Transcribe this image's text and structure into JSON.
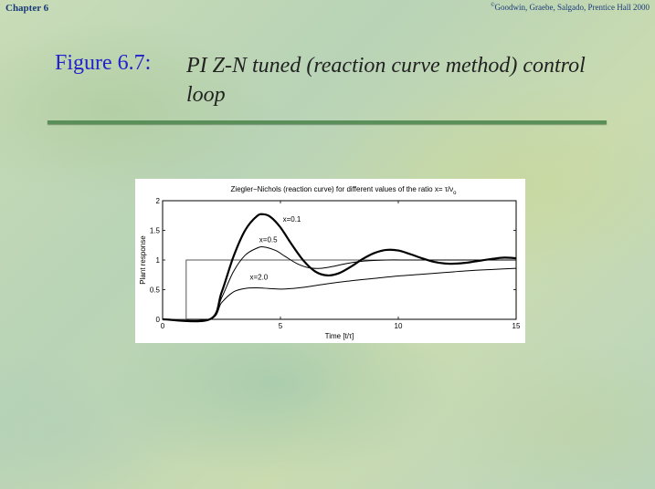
{
  "header": {
    "chapter": "Chapter 6",
    "copyright_symbol": "©",
    "copyright": "Goodwin, Graebe, Salgado, Prentice Hall 2000"
  },
  "slide": {
    "figure_label": "Figure 6.7:",
    "title": "PI Z-N tuned (reaction curve method) control loop"
  },
  "colors": {
    "figure_label": "#2222cc",
    "title": "#222222",
    "rule": "#5a8f5a",
    "header_text": "#1a3a7a"
  },
  "chart_data": {
    "type": "line",
    "title": "Ziegler−Nichols (reaction curve) for different values of the ratio x= τ/ν",
    "title_subscript": "o",
    "xlabel": "Time [t/τ]",
    "ylabel": "Plant response",
    "xlim": [
      0,
      15
    ],
    "ylim": [
      0,
      2
    ],
    "xticks": [
      0,
      5,
      10,
      15
    ],
    "yticks": [
      0,
      0.5,
      1,
      1.5,
      2
    ],
    "ytick_labels": [
      "0",
      "0.5",
      "1",
      "1.5",
      "2"
    ],
    "grid": false,
    "series": [
      {
        "name": "reference",
        "width": 1,
        "x": [
          0,
          1,
          1,
          15
        ],
        "y": [
          0,
          0,
          1,
          1
        ]
      },
      {
        "name": "x=0.1",
        "width": 2.2,
        "x": [
          0,
          2.0,
          2.5,
          3.0,
          3.5,
          4.0,
          4.3,
          4.6,
          5.0,
          5.5,
          6.0,
          6.5,
          7.0,
          7.5,
          8.0,
          8.5,
          9.0,
          9.5,
          10.0,
          10.5,
          11.0,
          11.5,
          12.0,
          12.5,
          13.0,
          13.5,
          14.0,
          14.5,
          15.0
        ],
        "y": [
          0,
          0,
          0.45,
          1.05,
          1.5,
          1.74,
          1.77,
          1.72,
          1.55,
          1.25,
          0.98,
          0.8,
          0.74,
          0.78,
          0.89,
          1.02,
          1.12,
          1.17,
          1.16,
          1.1,
          1.03,
          0.97,
          0.94,
          0.94,
          0.96,
          0.99,
          1.02,
          1.04,
          1.03
        ]
      },
      {
        "name": "x=0.5",
        "width": 1,
        "x": [
          0,
          2.0,
          2.5,
          3.0,
          3.5,
          4.0,
          4.3,
          4.8,
          5.2,
          5.7,
          6.2,
          6.7,
          7.2,
          7.8,
          8.5,
          9.5,
          10.5,
          12.0,
          13.5,
          15.0
        ],
        "y": [
          0,
          0,
          0.36,
          0.8,
          1.08,
          1.2,
          1.22,
          1.16,
          1.06,
          0.94,
          0.87,
          0.86,
          0.89,
          0.94,
          0.98,
          1.0,
          1.0,
          1.0,
          1.0,
          1.0
        ]
      },
      {
        "name": "x=2.0",
        "width": 1,
        "x": [
          0,
          2.0,
          2.5,
          3.0,
          3.5,
          4.0,
          4.5,
          5.0,
          5.5,
          6.0,
          7.0,
          8.0,
          9.0,
          10.0,
          11.0,
          12.0,
          13.0,
          14.0,
          15.0
        ],
        "y": [
          0,
          0,
          0.28,
          0.46,
          0.52,
          0.53,
          0.52,
          0.51,
          0.52,
          0.54,
          0.6,
          0.65,
          0.69,
          0.73,
          0.76,
          0.79,
          0.82,
          0.84,
          0.86
        ]
      }
    ],
    "annotations": [
      {
        "text": "x=0.1",
        "x": 5.1,
        "y": 1.65
      },
      {
        "text": "x=0.5",
        "x": 4.1,
        "y": 1.3
      },
      {
        "text": "x=2.0",
        "x": 3.7,
        "y": 0.67
      }
    ]
  }
}
